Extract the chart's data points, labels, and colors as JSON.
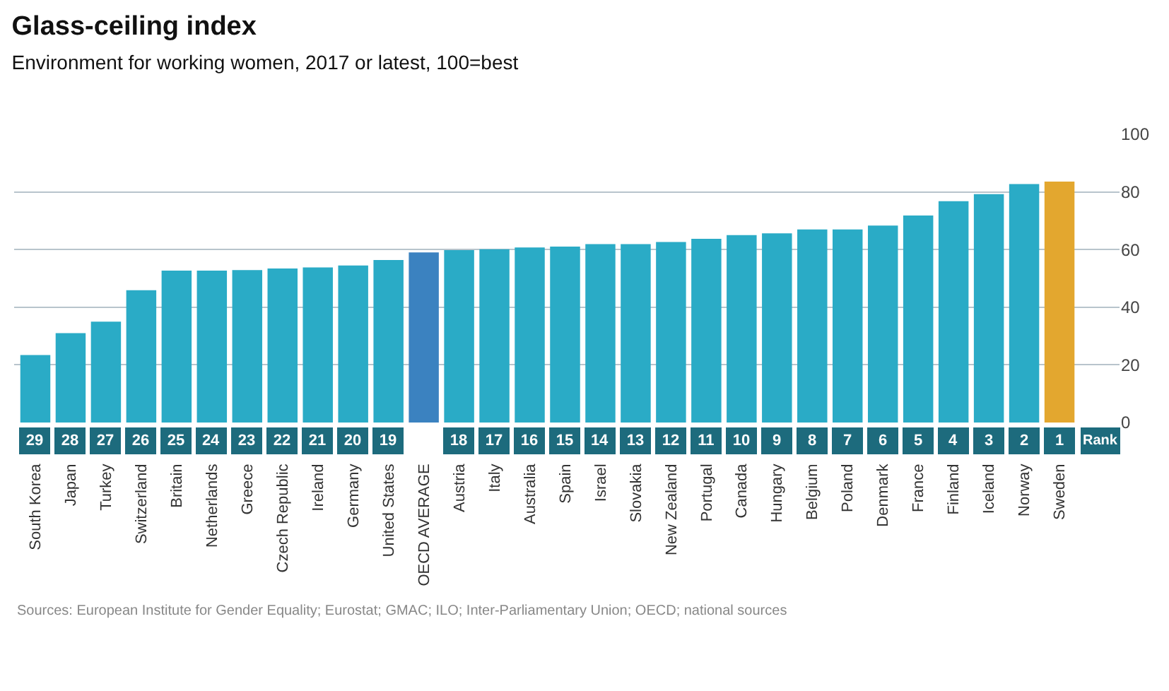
{
  "chart_data": {
    "type": "bar",
    "title": "Glass-ceiling index",
    "subtitle": "Environment for working women, 2017 or latest, 100=best",
    "categories": [
      "South Korea",
      "Japan",
      "Turkey",
      "Switzerland",
      "Britain",
      "Netherlands",
      "Greece",
      "Czech Republic",
      "Ireland",
      "Germany",
      "United States",
      "OECD AVERAGE",
      "Austria",
      "Italy",
      "Australia",
      "Spain",
      "Israel",
      "Slovakia",
      "New Zealand",
      "Portugal",
      "Canada",
      "Hungary",
      "Belgium",
      "Poland",
      "Denmark",
      "France",
      "Finland",
      "Iceland",
      "Norway",
      "Sweden"
    ],
    "values": [
      23.4,
      31,
      35,
      45.9,
      52.7,
      52.7,
      52.9,
      53.4,
      53.8,
      54.5,
      56.4,
      59,
      59.8,
      60.1,
      60.7,
      61,
      61.9,
      61.9,
      62.6,
      63.7,
      65,
      65.6,
      67,
      67,
      68.3,
      71.8,
      76.8,
      79.2,
      82.7,
      83.6
    ],
    "colors": [
      "#2aabc6",
      "#2aabc6",
      "#2aabc6",
      "#2aabc6",
      "#2aabc6",
      "#2aabc6",
      "#2aabc6",
      "#2aabc6",
      "#2aabc6",
      "#2aabc6",
      "#2aabc6",
      "#3b82c0",
      "#2aabc6",
      "#2aabc6",
      "#2aabc6",
      "#2aabc6",
      "#2aabc6",
      "#2aabc6",
      "#2aabc6",
      "#2aabc6",
      "#2aabc6",
      "#2aabc6",
      "#2aabc6",
      "#2aabc6",
      "#2aabc6",
      "#2aabc6",
      "#2aabc6",
      "#2aabc6",
      "#2aabc6",
      "#e3a72f"
    ],
    "ylim": [
      0,
      100
    ],
    "yticks": [
      0,
      20,
      40,
      60,
      80,
      100
    ],
    "grid": "y",
    "legend": false,
    "annotations": [
      "29",
      "28",
      "27",
      "26",
      "25",
      "24",
      "23",
      "22",
      "21",
      "20",
      "19",
      "18",
      "17",
      "16",
      "15",
      "14",
      "13",
      "12",
      "11",
      "10",
      "9",
      "8",
      "7",
      "6",
      "5",
      "4",
      "3",
      "2",
      "1",
      "Rank",
      "Sources: European Institute for Gender Equality; Eurostat; GMAC; ILO; Inter-Parliamentary Union; OECD; national sources"
    ]
  }
}
